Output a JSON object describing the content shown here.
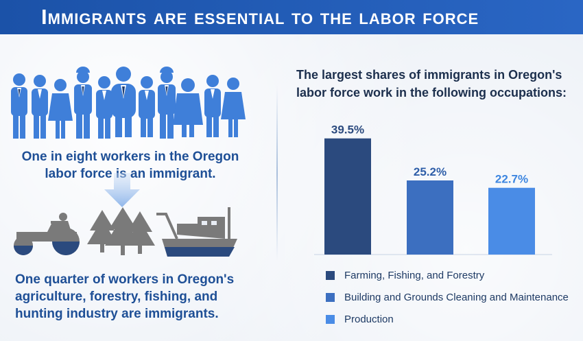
{
  "header": {
    "title": "Immigrants are essential to the labor force"
  },
  "left": {
    "stat_one": "One in eight workers in the Oregon labor force is an immigrant.",
    "stat_two": "One quarter of workers in Oregon's agriculture, forestry, fishing, and hunting industry are immigrants.",
    "icons": [
      "people-group-icon",
      "down-arrow-icon",
      "tractor-icon",
      "forest-icon",
      "fishing-boat-icon"
    ]
  },
  "chart_data": {
    "type": "bar",
    "title": "The largest shares of immigrants in Oregon's labor force work in the following occupations:",
    "categories": [
      "Farming, Fishing, and Forestry",
      "Building and Grounds Cleaning and Maintenance",
      "Production"
    ],
    "values": [
      39.5,
      25.2,
      22.7
    ],
    "data_labels": [
      "39.5%",
      "25.2%",
      "22.7%"
    ],
    "colors": [
      "#2b4a7e",
      "#3c6fc0",
      "#4a8ce6"
    ],
    "label_colors": [
      "#2b4a7e",
      "#2e5ea8",
      "#3d86e0"
    ],
    "ylim": [
      0,
      42
    ],
    "grid": false,
    "legend_position": "bottom"
  }
}
